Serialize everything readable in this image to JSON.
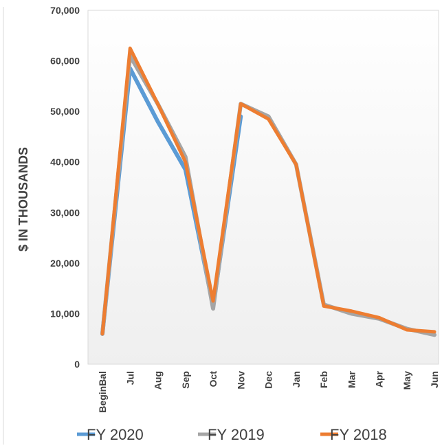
{
  "chart_data": {
    "type": "line",
    "title": "",
    "xlabel": "",
    "ylabel": "$ IN THOUSANDS",
    "ylim": [
      0,
      70000
    ],
    "yticks": [
      0,
      10000,
      20000,
      30000,
      40000,
      50000,
      60000,
      70000
    ],
    "ytick_labels": [
      "0",
      "10,000",
      "20,000",
      "30,000",
      "40,000",
      "50,000",
      "60,000",
      "70,000"
    ],
    "categories": [
      "BeginBal",
      "Jul",
      "Aug",
      "Sep",
      "Oct",
      "Nov",
      "Dec",
      "Jan",
      "Feb",
      "Mar",
      "Apr",
      "May",
      "Jun"
    ],
    "grid": false,
    "legend_position": "bottom",
    "series": [
      {
        "name": "FY 2020",
        "color": "#5B9BD5",
        "values": [
          6000,
          58500,
          48000,
          38500,
          11500,
          49000,
          null,
          null,
          null,
          null,
          null,
          null,
          null
        ]
      },
      {
        "name": "FY 2019",
        "color": "#A5A5A5",
        "values": [
          6000,
          61000,
          51500,
          41000,
          11000,
          51500,
          49000,
          39500,
          11800,
          10000,
          9000,
          7000,
          5800
        ]
      },
      {
        "name": "FY 2018",
        "color": "#ED7D31",
        "values": [
          6000,
          62500,
          51500,
          40000,
          12500,
          51500,
          48500,
          39500,
          11500,
          10500,
          9200,
          6800,
          6400
        ]
      }
    ]
  }
}
